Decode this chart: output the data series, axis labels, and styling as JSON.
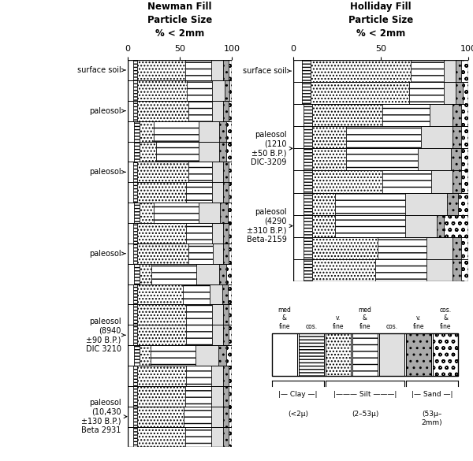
{
  "newman_title": "Newman Fill\nParticle Size\n% < 2mm",
  "holliday_title": "Holliday Fill\nParticle Size\n% < 2mm",
  "newman_rows": [
    [
      5,
      4,
      46,
      25,
      12,
      5,
      3
    ],
    [
      5,
      4,
      48,
      24,
      12,
      5,
      2
    ],
    [
      5,
      4,
      49,
      23,
      11,
      5,
      3
    ],
    [
      6,
      5,
      14,
      43,
      20,
      7,
      5
    ],
    [
      6,
      5,
      16,
      41,
      20,
      7,
      5
    ],
    [
      5,
      4,
      49,
      23,
      11,
      5,
      3
    ],
    [
      5,
      4,
      47,
      25,
      11,
      5,
      3
    ],
    [
      6,
      5,
      14,
      43,
      21,
      7,
      4
    ],
    [
      5,
      4,
      47,
      25,
      11,
      5,
      3
    ],
    [
      5,
      4,
      49,
      24,
      10,
      5,
      3
    ],
    [
      6,
      5,
      12,
      43,
      22,
      7,
      5
    ],
    [
      5,
      4,
      44,
      26,
      12,
      5,
      4
    ],
    [
      5,
      4,
      47,
      25,
      11,
      5,
      3
    ],
    [
      5,
      4,
      47,
      25,
      11,
      5,
      3
    ],
    [
      6,
      5,
      11,
      43,
      22,
      8,
      5
    ],
    [
      5,
      4,
      47,
      24,
      12,
      5,
      3
    ],
    [
      5,
      4,
      46,
      25,
      12,
      5,
      3
    ],
    [
      5,
      4,
      45,
      26,
      12,
      5,
      3
    ],
    [
      5,
      4,
      46,
      25,
      12,
      5,
      3
    ]
  ],
  "holliday_rows": [
    [
      5,
      5,
      57,
      19,
      7,
      3,
      4
    ],
    [
      5,
      5,
      56,
      20,
      7,
      4,
      3
    ],
    [
      6,
      5,
      40,
      27,
      13,
      5,
      4
    ],
    [
      6,
      5,
      19,
      43,
      18,
      5,
      4
    ],
    [
      6,
      5,
      19,
      41,
      19,
      6,
      4
    ],
    [
      6,
      5,
      40,
      28,
      12,
      5,
      4
    ],
    [
      6,
      5,
      13,
      40,
      24,
      6,
      6
    ],
    [
      6,
      5,
      13,
      40,
      18,
      4,
      14
    ],
    [
      6,
      5,
      37,
      28,
      15,
      5,
      4
    ],
    [
      6,
      5,
      36,
      29,
      15,
      5,
      4
    ]
  ],
  "newman_labels": [
    {
      "text": "surface soil",
      "y": 18.5
    },
    {
      "text": "paleosol",
      "y": 16.5
    },
    {
      "text": "paleosol",
      "y": 13.5
    },
    {
      "text": "paleosol",
      "y": 9.5
    },
    {
      "text": "paleosol\n(8940\n±90 B.P.)\nDIC 3210",
      "y": 5.5
    },
    {
      "text": "paleosol\n(10,430\n±130 B.P.)\nBeta 2931",
      "y": 1.5
    }
  ],
  "holliday_labels": [
    {
      "text": "surface soil",
      "y": 9.5
    },
    {
      "text": "paleosol\n(1210\n±50 B.P.)\nDIC-3209",
      "y": 6.0
    },
    {
      "text": "paleosol\n(4290\n±310 B.P.)\nBeta-2159",
      "y": 2.5
    }
  ],
  "hatch_patterns": [
    {
      "hatch": "////",
      "fc": "white",
      "ec": "black"
    },
    {
      "hatch": "----",
      "fc": "white",
      "ec": "black"
    },
    {
      "hatch": "xxxx",
      "fc": "white",
      "ec": "black"
    },
    {
      "hatch": "====",
      "fc": "white",
      "ec": "black"
    },
    {
      "hatch": "----",
      "fc": "#e8e8e8",
      "ec": "black"
    },
    {
      "hatch": "....",
      "fc": "#cccccc",
      "ec": "black"
    },
    {
      "hatch": "oooo",
      "fc": "white",
      "ec": "black"
    }
  ],
  "legend_labels_top": [
    "med\n&\nfine",
    "cos.",
    "v.\nfine",
    "med\n&\nfine",
    "cos.",
    "v.\nfine",
    "cos.\n&\nfine"
  ],
  "legend_sections": [
    {
      "label": "— Clay —",
      "range": "(<2μ)",
      "start": 0,
      "end": 2
    },
    {
      "label": "——— Silt ———",
      "range": "(2–53μ)",
      "start": 2,
      "end": 5
    },
    {
      "label": "— Sand —",
      "range": "(53μ–\n2mm)",
      "start": 5,
      "end": 7
    }
  ]
}
